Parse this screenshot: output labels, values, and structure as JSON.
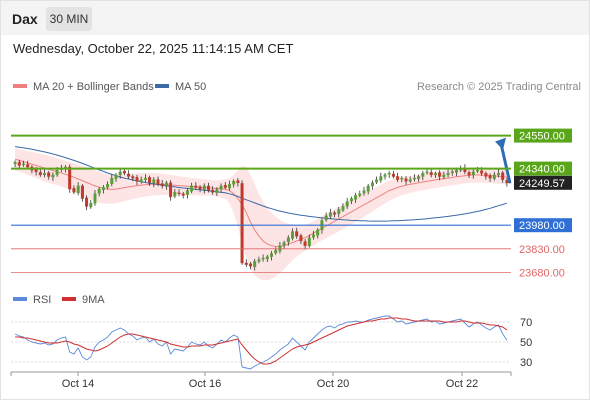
{
  "header": {
    "symbol": "Dax",
    "timeframe": "30 MIN",
    "datetime": "Wednesday, October 22, 2025 11:14:15 AM CET"
  },
  "legend": {
    "bollinger": "MA 20 + Bollinger Bands",
    "ma50": "MA 50",
    "credit": "Research © 2025 Trading Central"
  },
  "rsi_legend": {
    "rsi": "RSI",
    "ma9": "9MA"
  },
  "colors": {
    "resistance": "#5aa61a",
    "support_major": "#2f6fd6",
    "support_minor": "#e06666",
    "candle_up": "#5a9e3a",
    "candle_down": "#c0392b",
    "band_fill": "#fde0e0",
    "ma20": "#f08080",
    "ma50": "#3b6aa8",
    "current": "#222222",
    "arrow": "#2e6db4",
    "rsi": "#5b8ad8",
    "rsi_ma": "#d03030"
  },
  "chart_data": [
    {
      "type": "candlestick",
      "x_ticks": [
        "Oct 14",
        "Oct 16",
        "Oct 20",
        "Oct 22"
      ],
      "y_range": [
        23600,
        24700
      ],
      "levels": [
        {
          "label": "24550.00",
          "value": 24550,
          "kind": "resistance"
        },
        {
          "label": "24340.00",
          "value": 24340,
          "kind": "resistance"
        },
        {
          "label": "24249.57",
          "value": 24249.57,
          "kind": "current"
        },
        {
          "label": "23980.00",
          "value": 23980,
          "kind": "support_major"
        },
        {
          "label": "23830.00",
          "value": 23830,
          "kind": "support_minor"
        },
        {
          "label": "23680.00",
          "value": 23680,
          "kind": "support_minor"
        }
      ],
      "closes": [
        24380,
        24360,
        24370,
        24350,
        24330,
        24320,
        24300,
        24310,
        24290,
        24300,
        24330,
        24340,
        24350,
        24210,
        24190,
        24230,
        24150,
        24100,
        24120,
        24180,
        24210,
        24220,
        24240,
        24280,
        24300,
        24320,
        24310,
        24290,
        24280,
        24260,
        24270,
        24280,
        24250,
        24270,
        24240,
        24230,
        24250,
        24160,
        24190,
        24180,
        24170,
        24200,
        24230,
        24220,
        24210,
        24230,
        24200,
        24190,
        24210,
        24230,
        24220,
        24240,
        24260,
        24250,
        23740,
        23730,
        23720,
        23750,
        23760,
        23770,
        23780,
        23800,
        23820,
        23850,
        23870,
        23900,
        23940,
        23910,
        23880,
        23850,
        23900,
        23920,
        23950,
        24010,
        24040,
        24060,
        24050,
        24080,
        24100,
        24130,
        24150,
        24170,
        24180,
        24200,
        24230,
        24250,
        24270,
        24290,
        24300,
        24310,
        24290,
        24270,
        24280,
        24260,
        24270,
        24280,
        24290,
        24310,
        24320,
        24300,
        24310,
        24290,
        24300,
        24310,
        24320,
        24330,
        24340,
        24320,
        24300,
        24320,
        24330,
        24310,
        24290,
        24280,
        24300,
        24310,
        24270,
        24249.57
      ],
      "ma20": [
        24400,
        24392,
        24384,
        24376,
        24368,
        24360,
        24352,
        24344,
        24336,
        24328,
        24320,
        24312,
        24304,
        24296,
        24285,
        24274,
        24263,
        24252,
        24241,
        24230,
        24222,
        24215,
        24210,
        24208,
        24210,
        24214,
        24219,
        24224,
        24228,
        24232,
        24235,
        24238,
        24240,
        24241,
        24241,
        24240,
        24238,
        24236,
        24234,
        24232,
        24230,
        24228,
        24226,
        24224,
        24222,
        24220,
        24218,
        24216,
        24214,
        24212,
        24210,
        24200,
        24180,
        24150,
        24110,
        24060,
        24000,
        23950,
        23910,
        23880,
        23860,
        23850,
        23845,
        23845,
        23850,
        23860,
        23870,
        23880,
        23890,
        23900,
        23915,
        23930,
        23945,
        23960,
        23975,
        23990,
        24005,
        24020,
        24035,
        24050,
        24065,
        24080,
        24095,
        24110,
        24125,
        24140,
        24155,
        24170,
        24185,
        24200,
        24210,
        24220,
        24228,
        24234,
        24240,
        24245,
        24250,
        24255,
        24260,
        24264,
        24268,
        24272,
        24276,
        24280,
        24284,
        24288,
        24292,
        24295,
        24298,
        24300,
        24300,
        24299,
        24298,
        24296,
        24294,
        24292,
        24289,
        24286
      ],
      "bb_width": [
        70,
        72,
        74,
        76,
        78,
        80,
        82,
        84,
        85,
        86,
        86,
        86,
        86,
        88,
        90,
        92,
        94,
        96,
        98,
        100,
        98,
        96,
        94,
        92,
        90,
        88,
        86,
        84,
        82,
        80,
        78,
        76,
        74,
        72,
        70,
        68,
        66,
        64,
        62,
        60,
        58,
        56,
        55,
        54,
        53,
        52,
        51,
        50,
        52,
        56,
        62,
        80,
        120,
        180,
        250,
        290,
        300,
        290,
        270,
        250,
        230,
        210,
        190,
        170,
        150,
        130,
        115,
        100,
        90,
        82,
        78,
        76,
        76,
        76,
        77,
        78,
        79,
        80,
        80,
        80,
        80,
        80,
        78,
        76,
        74,
        72,
        70,
        68,
        66,
        64,
        62,
        60,
        58,
        56,
        54,
        53,
        52,
        52,
        52,
        51,
        51,
        50,
        50,
        50,
        50,
        50,
        50,
        49,
        49,
        49,
        49,
        48,
        48,
        48,
        48,
        48,
        48,
        48
      ],
      "ma50": [
        24480,
        24476,
        24472,
        24468,
        24463,
        24458,
        24452,
        24446,
        24440,
        24433,
        24426,
        24418,
        24410,
        24401,
        24392,
        24383,
        24373,
        24363,
        24352,
        24342,
        24332,
        24322,
        24312,
        24303,
        24295,
        24287,
        24280,
        24274,
        24268,
        24262,
        24257,
        24252,
        24247,
        24243,
        24239,
        24235,
        24231,
        24227,
        24224,
        24220,
        24217,
        24214,
        24211,
        24208,
        24205,
        24202,
        24199,
        24196,
        24193,
        24190,
        24186,
        24180,
        24172,
        24163,
        24152,
        24142,
        24132,
        24122,
        24112,
        24102,
        24093,
        24085,
        24077,
        24070,
        24064,
        24058,
        24053,
        24048,
        24044,
        24040,
        24036,
        24033,
        24030,
        24027,
        24024,
        24021,
        24019,
        24017,
        24015,
        24013,
        24011,
        24010,
        24009,
        24008,
        24007,
        24006,
        24006,
        24006,
        24006,
        24007,
        24008,
        24009,
        24010,
        24012,
        24013,
        24015,
        24017,
        24019,
        24021,
        24024,
        24027,
        24030,
        24033,
        24036,
        24040,
        24044,
        24048,
        24052,
        24057,
        24062,
        24068,
        24074,
        24081,
        24088,
        24096,
        24104,
        24112,
        24120
      ]
    },
    {
      "type": "line",
      "series": [
        {
          "name": "RSI",
          "values": [
            58,
            56,
            55,
            52,
            50,
            49,
            48,
            49,
            47,
            48,
            52,
            54,
            55,
            40,
            38,
            44,
            35,
            32,
            35,
            45,
            50,
            52,
            55,
            60,
            62,
            64,
            62,
            58,
            56,
            52,
            54,
            55,
            50,
            53,
            48,
            46,
            50,
            38,
            43,
            42,
            41,
            45,
            50,
            48,
            47,
            50,
            46,
            44,
            48,
            52,
            50,
            54,
            57,
            55,
            25,
            24,
            23,
            26,
            28,
            30,
            32,
            35,
            38,
            42,
            45,
            48,
            54,
            50,
            46,
            42,
            50,
            54,
            58,
            62,
            65,
            66,
            64,
            67,
            68,
            70,
            70,
            71,
            70,
            70,
            72,
            73,
            74,
            75,
            76,
            76,
            73,
            70,
            71,
            68,
            69,
            70,
            71,
            72,
            73,
            70,
            71,
            68,
            69,
            70,
            71,
            72,
            73,
            69,
            65,
            68,
            70,
            67,
            64,
            62,
            65,
            67,
            58,
            52
          ]
        },
        {
          "name": "9MA",
          "values": [
            55,
            55,
            54,
            54,
            53,
            52,
            51,
            50,
            49,
            49,
            49,
            50,
            51,
            50,
            48,
            47,
            45,
            43,
            42,
            41,
            42,
            44,
            46,
            49,
            52,
            55,
            57,
            58,
            58,
            57,
            56,
            55,
            54,
            53,
            52,
            51,
            50,
            48,
            47,
            46,
            45,
            45,
            46,
            46,
            46,
            47,
            47,
            47,
            48,
            49,
            50,
            51,
            52,
            53,
            47,
            42,
            37,
            33,
            30,
            28,
            28,
            29,
            31,
            34,
            37,
            40,
            43,
            45,
            46,
            47,
            48,
            50,
            52,
            54,
            56,
            58,
            60,
            62,
            64,
            66,
            67,
            68,
            69,
            70,
            71,
            71,
            72,
            73,
            73,
            74,
            74,
            74,
            73,
            73,
            72,
            71,
            71,
            71,
            71,
            71,
            71,
            71,
            70,
            70,
            70,
            70,
            71,
            71,
            70,
            69,
            69,
            69,
            68,
            67,
            67,
            66,
            65,
            62
          ]
        }
      ],
      "y_ticks": [
        70,
        50,
        30
      ],
      "y_range": [
        20,
        80
      ]
    }
  ]
}
